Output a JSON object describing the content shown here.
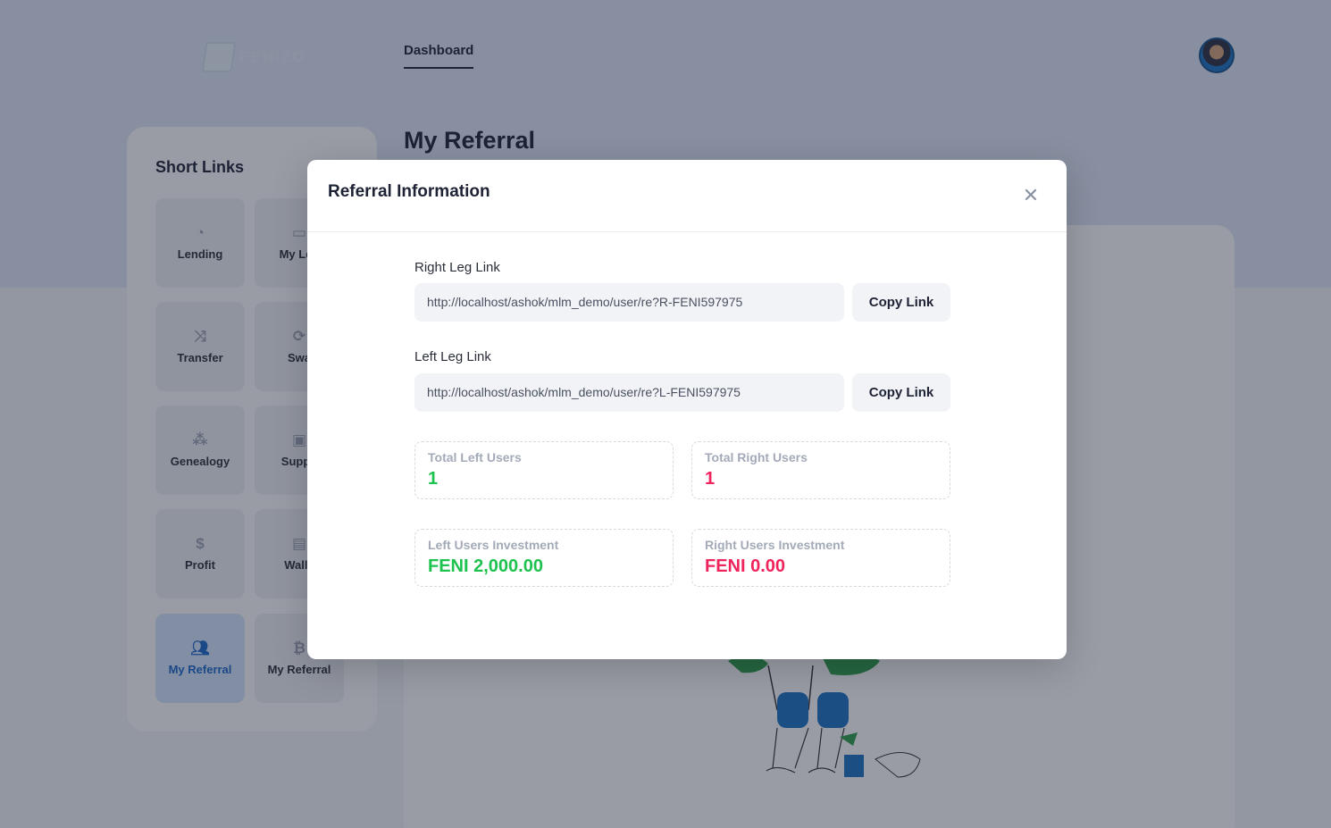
{
  "header": {
    "logo_text": "FENIZO",
    "nav_active": "Dashboard"
  },
  "sidebar": {
    "title": "Short Links",
    "tiles": [
      {
        "label": "Lending",
        "icon": "pie-chart-icon"
      },
      {
        "label": "My Len",
        "icon": "card-icon"
      },
      {
        "label": "Transfer",
        "icon": "shuffle-icon"
      },
      {
        "label": "Swa",
        "icon": "refresh-icon"
      },
      {
        "label": "Genealogy",
        "icon": "tree-icon"
      },
      {
        "label": "Suppo",
        "icon": "support-24-icon"
      },
      {
        "label": "Profit",
        "icon": "dollar-icon"
      },
      {
        "label": "Walle",
        "icon": "wallet-icon"
      },
      {
        "label": "My Referral",
        "icon": "users-icon",
        "active": true
      },
      {
        "label": "My Referral",
        "icon": "bitcoin-icon"
      }
    ]
  },
  "main": {
    "title": "My Referral"
  },
  "modal": {
    "title": "Referral Information",
    "close_icon": "close-icon",
    "right_leg": {
      "label": "Right Leg Link",
      "value": "http://localhost/ashok/mlm_demo/user/re?R-FENI597975",
      "button": "Copy Link"
    },
    "left_leg": {
      "label": "Left Leg Link",
      "value": "http://localhost/ashok/mlm_demo/user/re?L-FENI597975",
      "button": "Copy Link"
    },
    "stats": {
      "total_left_label": "Total Left Users",
      "total_left_value": "1",
      "total_right_label": "Total Right Users",
      "total_right_value": "1",
      "left_invest_label": "Left Users Investment",
      "left_invest_value": "FENI 2,000.00",
      "right_invest_label": "Right Users Investment",
      "right_invest_value": "FENI 0.00"
    },
    "colors": {
      "positive": "#1ec24f",
      "negative": "#f0245c"
    }
  }
}
